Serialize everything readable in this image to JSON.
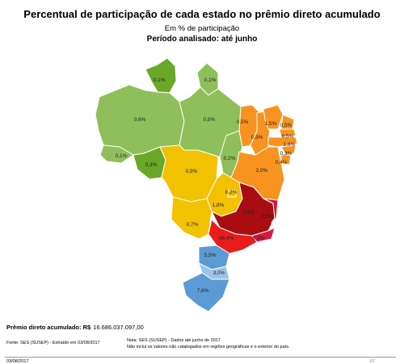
{
  "header": {
    "title": "Percentual de participação de cada estado no prêmio direto acumulado",
    "subtitle": "Em % de participação",
    "period": "Período analisado: até junho"
  },
  "map_labels": {
    "rr": "0,1%",
    "ap": "0,1%",
    "am": "0,6%",
    "pa": "0,8%",
    "ma": "0,5%",
    "ce": "1,5%",
    "rn": "0,5%",
    "pi": "0,3%",
    "pb": "0,5%",
    "pe": "1,6%",
    "al": "0,3%",
    "se": "0,4%",
    "ba": "2,0%",
    "ac": "0,1%",
    "ro": "0,3%",
    "to": "0,2%",
    "mt": "0,9%",
    "go": "1,8%",
    "df": "8,2%",
    "ms": "0,7%",
    "mg": "7,4%",
    "es": "0,9%",
    "rj": "8,3%",
    "sp": "46,4%",
    "pr": "5,5%",
    "sc": "3,0%",
    "rs": "7,6%"
  },
  "colors": {
    "light_green": "#8fbf5a",
    "dark_green": "#6aa828",
    "orange": "#f7931e",
    "yellow": "#f2c100",
    "dark_red": "#a90d12",
    "red": "#ea1b1b",
    "crimson": "#d4183f",
    "blue": "#5b9bd5",
    "light_blue": "#9dc3e6"
  },
  "footer": {
    "total_label": "Prêmio direto acumulado: R$",
    "total_value": "16.686.037.097,00",
    "source": "Fonte: SES (SUSEP) - Extraído em 03/08/2017",
    "note_line1": "Nota: SES (SUSEP) - Dados até junho de 2017",
    "note_line2": "Não inclui os valores não catalogados em regiões geográficas e o exterior do país.",
    "date": "03/08/2017",
    "page": "67"
  }
}
